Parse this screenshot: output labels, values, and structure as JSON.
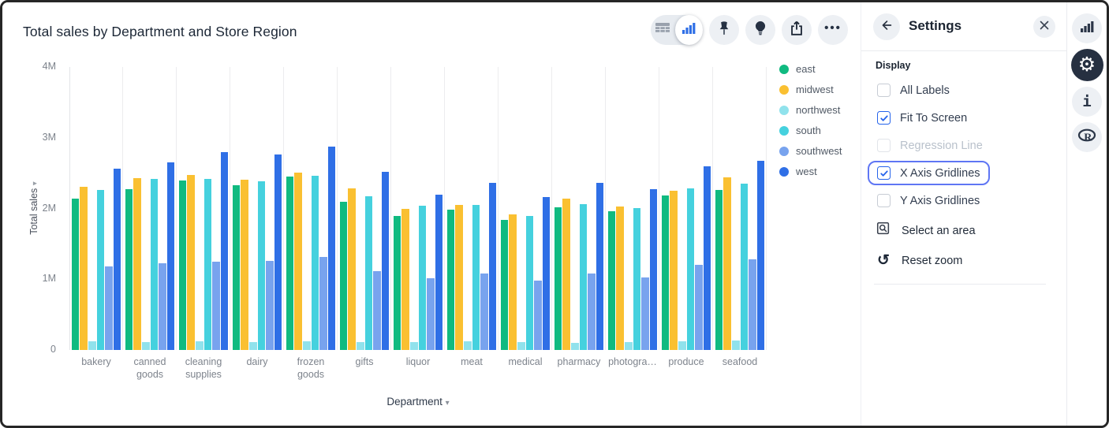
{
  "colors": {
    "accent_blue": "#2563eb",
    "focus_ring": "#5f76f4",
    "icon_dark": "#263143",
    "button_bg": "#edf0f4"
  },
  "header": {
    "title": "Total sales by Department and Store Region"
  },
  "toolbar": {
    "view_toggle": {
      "options": [
        "table-view",
        "chart-view"
      ],
      "selected": "chart-view"
    },
    "buttons": [
      "pin",
      "insights",
      "export",
      "more-options"
    ]
  },
  "chart_data": {
    "type": "bar",
    "title": "Total sales by Department and Store Region",
    "xlabel": "Department",
    "ylabel": "Total sales",
    "unit": "millions",
    "ymax_m": 4,
    "y_ticks": [
      "0",
      "1M",
      "2M",
      "3M",
      "4M"
    ],
    "x_gridlines": true,
    "y_gridlines": false,
    "legend_position": "right",
    "categories": [
      "bakery",
      "canned goods",
      "cleaning supplies",
      "dairy",
      "frozen goods",
      "gifts",
      "liquor",
      "meat",
      "medical",
      "pharmacy",
      "photogra…",
      "produce",
      "seafood"
    ],
    "series": [
      {
        "name": "east",
        "color": "#10ba80",
        "values": [
          2.14,
          2.27,
          2.4,
          2.33,
          2.45,
          2.1,
          1.89,
          1.98,
          1.84,
          2.02,
          1.96,
          2.18,
          2.26
        ]
      },
      {
        "name": "midwest",
        "color": "#fac031",
        "values": [
          2.31,
          2.43,
          2.47,
          2.41,
          2.51,
          2.28,
          1.99,
          2.05,
          1.92,
          2.14,
          2.03,
          2.25,
          2.44
        ]
      },
      {
        "name": "northwest",
        "color": "#90e2ec",
        "values": [
          0.12,
          0.11,
          0.12,
          0.11,
          0.12,
          0.11,
          0.11,
          0.12,
          0.11,
          0.1,
          0.11,
          0.12,
          0.13
        ]
      },
      {
        "name": "south",
        "color": "#45d1de",
        "values": [
          2.26,
          2.42,
          2.42,
          2.39,
          2.46,
          2.17,
          2.04,
          2.05,
          1.89,
          2.06,
          2.01,
          2.28,
          2.35
        ]
      },
      {
        "name": "southwest",
        "color": "#78a3ee",
        "values": [
          1.18,
          1.23,
          1.25,
          1.26,
          1.32,
          1.12,
          1.01,
          1.08,
          0.98,
          1.08,
          1.03,
          1.2,
          1.28
        ]
      },
      {
        "name": "west",
        "color": "#2f6fe6",
        "values": [
          2.56,
          2.65,
          2.8,
          2.76,
          2.88,
          2.52,
          2.2,
          2.36,
          2.16,
          2.36,
          2.27,
          2.6,
          2.68
        ]
      }
    ]
  },
  "settings": {
    "title": "Settings",
    "section": "Display",
    "checkboxes": [
      {
        "label": "All Labels",
        "checked": false,
        "disabled": false,
        "focused": false
      },
      {
        "label": "Fit To Screen",
        "checked": true,
        "disabled": false,
        "focused": false
      },
      {
        "label": "Regression Line",
        "checked": false,
        "disabled": true,
        "focused": false
      },
      {
        "label": "X Axis Gridlines",
        "checked": true,
        "disabled": false,
        "focused": true
      },
      {
        "label": "Y Axis Gridlines",
        "checked": false,
        "disabled": false,
        "focused": false
      }
    ],
    "actions": [
      {
        "label": "Select an area",
        "icon": "select-area-icon"
      },
      {
        "label": "Reset zoom",
        "icon": "reset-zoom-icon"
      }
    ]
  },
  "rail": {
    "buttons": [
      {
        "icon": "bar-chart-icon",
        "active": false
      },
      {
        "icon": "gear-icon",
        "active": true
      },
      {
        "icon": "info-icon",
        "active": false
      },
      {
        "icon": "r-logo-icon",
        "active": false
      }
    ]
  }
}
